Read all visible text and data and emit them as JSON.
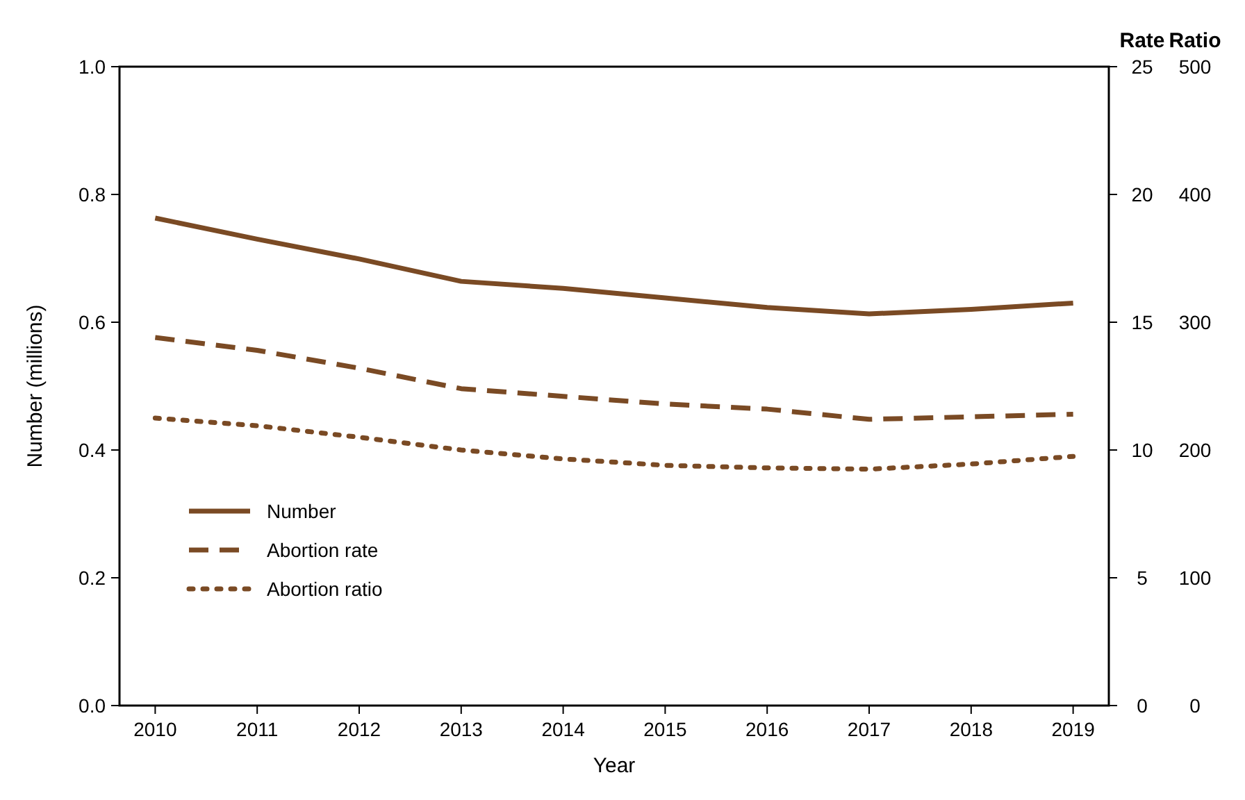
{
  "chart_data": {
    "type": "line",
    "xlabel": "Year",
    "ylabel": "Number (millions)",
    "y2label": "Rate",
    "y3label": "Ratio",
    "categories": [
      "2010",
      "2011",
      "2012",
      "2013",
      "2014",
      "2015",
      "2016",
      "2017",
      "2018",
      "2019"
    ],
    "ylim": [
      0,
      1.0
    ],
    "yticks": [
      {
        "value": 0,
        "label": "0.0"
      },
      {
        "value": 0.2,
        "label": "0.2"
      },
      {
        "value": 0.4,
        "label": "0.4"
      },
      {
        "value": 0.6,
        "label": "0.6"
      },
      {
        "value": 0.8,
        "label": "0.8"
      },
      {
        "value": 1,
        "label": "1.0"
      }
    ],
    "y2lim": [
      0,
      25
    ],
    "y2ticks": [
      0,
      5,
      10,
      15,
      20,
      25
    ],
    "y3lim": [
      0,
      500
    ],
    "y3ticks": [
      0,
      100,
      200,
      300,
      400,
      500
    ],
    "grid": false,
    "legend": "bottom left",
    "marker": "none",
    "series": [
      {
        "name": "Number",
        "color": "#7a4a24",
        "line_style": "solid",
        "values": [
          0.763,
          0.73,
          0.699,
          0.664,
          0.653,
          0.638,
          0.623,
          0.613,
          0.62,
          0.63
        ]
      },
      {
        "name": "Abortion rate",
        "color": "#7a4a24",
        "line_style": "dashed",
        "axis": "y2",
        "values": [
          14.4,
          13.9,
          13.2,
          12.4,
          12.1,
          11.8,
          11.6,
          11.2,
          11.3,
          11.4
        ]
      },
      {
        "name": "Abortion ratio",
        "color": "#7a4a24",
        "line_style": "dotted",
        "axis": "y3",
        "values": [
          225,
          219,
          210,
          200,
          193,
          188,
          186,
          185,
          189,
          195
        ]
      }
    ]
  }
}
